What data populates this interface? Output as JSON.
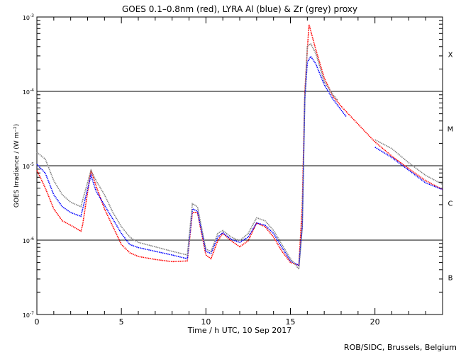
{
  "chart_data": {
    "type": "line",
    "title": "GOES 0.1–0.8nm (red), LYRA Al (blue) & Zr (grey) proxy",
    "xlabel": "Time / h UTC, 10 Sep 2017",
    "ylabel": "GOES Irradiance / (W m⁻²)",
    "credit": "ROB/SIDC, Brussels, Belgium",
    "xlim": [
      0,
      24
    ],
    "ylim": [
      1e-07,
      0.001
    ],
    "yscale": "log",
    "x_ticks": [
      "0",
      "5",
      "10",
      "15",
      "20"
    ],
    "y_tick_exponents": [
      "-7",
      "-6",
      "-5",
      "-4",
      "-3"
    ],
    "y_tick_base": "10",
    "reference_lines": [
      1e-06,
      1e-05,
      0.0001
    ],
    "flare_classes": [
      "B",
      "C",
      "M",
      "X"
    ],
    "series": [
      {
        "name": "GOES 0.1-0.8nm",
        "color": "#ff0000",
        "segments": [
          [
            [
              0,
              -5.06
            ],
            [
              0.5,
              -5.3
            ],
            [
              1,
              -5.58
            ],
            [
              1.5,
              -5.74
            ],
            [
              2,
              -5.8
            ],
            [
              2.6,
              -5.88
            ],
            [
              2.7,
              -5.8
            ],
            [
              3.2,
              -5.06
            ],
            [
              3.5,
              -5.27
            ],
            [
              4,
              -5.58
            ],
            [
              4.5,
              -5.82
            ],
            [
              5,
              -6.06
            ],
            [
              5.5,
              -6.17
            ],
            [
              6,
              -6.22
            ],
            [
              7,
              -6.26
            ],
            [
              8,
              -6.29
            ],
            [
              8.9,
              -6.28
            ],
            [
              9.2,
              -5.63
            ],
            [
              9.5,
              -5.63
            ],
            [
              10,
              -6.2
            ],
            [
              10.3,
              -6.25
            ],
            [
              10.7,
              -6.01
            ],
            [
              11,
              -5.91
            ],
            [
              11.5,
              -6.01
            ],
            [
              12,
              -6.09
            ],
            [
              12.5,
              -6.01
            ],
            [
              13,
              -5.77
            ],
            [
              13.5,
              -5.82
            ],
            [
              14,
              -5.96
            ],
            [
              14.5,
              -6.15
            ],
            [
              15,
              -6.3
            ],
            [
              15.5,
              -6.34
            ],
            [
              15.7,
              -5.53
            ],
            [
              15.85,
              -4.01
            ],
            [
              16,
              -3.44
            ],
            [
              16.1,
              -3.1
            ],
            [
              16.5,
              -3.44
            ],
            [
              17,
              -3.82
            ],
            [
              17.5,
              -4.06
            ],
            [
              18,
              -4.2
            ],
            [
              19,
              -4.44
            ],
            [
              20,
              -4.68
            ],
            [
              21,
              -4.87
            ],
            [
              22,
              -5.04
            ],
            [
              23,
              -5.2
            ],
            [
              24,
              -5.32
            ]
          ]
        ]
      },
      {
        "name": "LYRA Al proxy",
        "color": "#0000ff",
        "segments": [
          [
            [
              0,
              -4.98
            ],
            [
              0.5,
              -5.1
            ],
            [
              1,
              -5.39
            ],
            [
              1.5,
              -5.55
            ],
            [
              2,
              -5.63
            ],
            [
              2.6,
              -5.68
            ],
            [
              3.2,
              -5.13
            ],
            [
              3.5,
              -5.34
            ],
            [
              4,
              -5.53
            ],
            [
              4.5,
              -5.72
            ],
            [
              5,
              -5.91
            ],
            [
              5.5,
              -6.06
            ],
            [
              6,
              -6.1
            ],
            [
              7,
              -6.15
            ],
            [
              8,
              -6.2
            ],
            [
              8.9,
              -6.25
            ],
            [
              9.2,
              -5.58
            ],
            [
              9.5,
              -5.61
            ],
            [
              10,
              -6.15
            ],
            [
              10.3,
              -6.18
            ],
            [
              10.7,
              -5.96
            ],
            [
              11,
              -5.9
            ],
            [
              11.5,
              -5.99
            ],
            [
              12,
              -6.03
            ],
            [
              12.5,
              -5.96
            ],
            [
              13,
              -5.77
            ],
            [
              13.5,
              -5.8
            ],
            [
              14,
              -5.91
            ],
            [
              14.5,
              -6.1
            ],
            [
              15,
              -6.28
            ],
            [
              15.5,
              -6.34
            ],
            [
              15.7,
              -5.82
            ],
            [
              15.85,
              -4.1
            ],
            [
              16,
              -3.61
            ],
            [
              16.2,
              -3.53
            ],
            [
              16.5,
              -3.63
            ],
            [
              17,
              -3.91
            ],
            [
              17.5,
              -4.1
            ],
            [
              18,
              -4.25
            ],
            [
              18.3,
              -4.34
            ]
          ],
          [
            [
              20,
              -4.75
            ],
            [
              21,
              -4.89
            ],
            [
              22,
              -5.06
            ],
            [
              23,
              -5.23
            ],
            [
              24,
              -5.32
            ]
          ]
        ]
      },
      {
        "name": "LYRA Zr proxy",
        "color": "#808080",
        "segments": [
          [
            [
              0,
              -4.82
            ],
            [
              0.5,
              -4.91
            ],
            [
              1,
              -5.2
            ],
            [
              1.5,
              -5.39
            ],
            [
              2,
              -5.49
            ],
            [
              2.6,
              -5.55
            ],
            [
              3.2,
              -5.06
            ],
            [
              3.5,
              -5.2
            ],
            [
              4,
              -5.39
            ],
            [
              4.5,
              -5.63
            ],
            [
              5,
              -5.82
            ],
            [
              5.5,
              -5.96
            ],
            [
              6,
              -6.03
            ],
            [
              7,
              -6.09
            ],
            [
              8,
              -6.15
            ],
            [
              8.9,
              -6.2
            ],
            [
              9.2,
              -5.51
            ],
            [
              9.5,
              -5.55
            ],
            [
              10,
              -6.12
            ],
            [
              10.3,
              -6.15
            ],
            [
              10.7,
              -5.91
            ],
            [
              11,
              -5.87
            ],
            [
              11.5,
              -5.96
            ],
            [
              12,
              -6.01
            ],
            [
              12.5,
              -5.91
            ],
            [
              13,
              -5.7
            ],
            [
              13.5,
              -5.74
            ],
            [
              14,
              -5.87
            ],
            [
              14.5,
              -6.06
            ],
            [
              15,
              -6.25
            ],
            [
              15.5,
              -6.39
            ],
            [
              15.7,
              -5.82
            ],
            [
              15.85,
              -4.1
            ],
            [
              16,
              -3.39
            ],
            [
              16.2,
              -3.36
            ],
            [
              16.5,
              -3.49
            ],
            [
              17,
              -3.87
            ],
            [
              17.5,
              -4.04
            ],
            [
              17.8,
              -4.12
            ]
          ],
          [
            [
              20,
              -4.65
            ],
            [
              21,
              -4.77
            ],
            [
              22,
              -4.96
            ],
            [
              23,
              -5.13
            ],
            [
              24,
              -5.25
            ]
          ]
        ]
      }
    ]
  }
}
